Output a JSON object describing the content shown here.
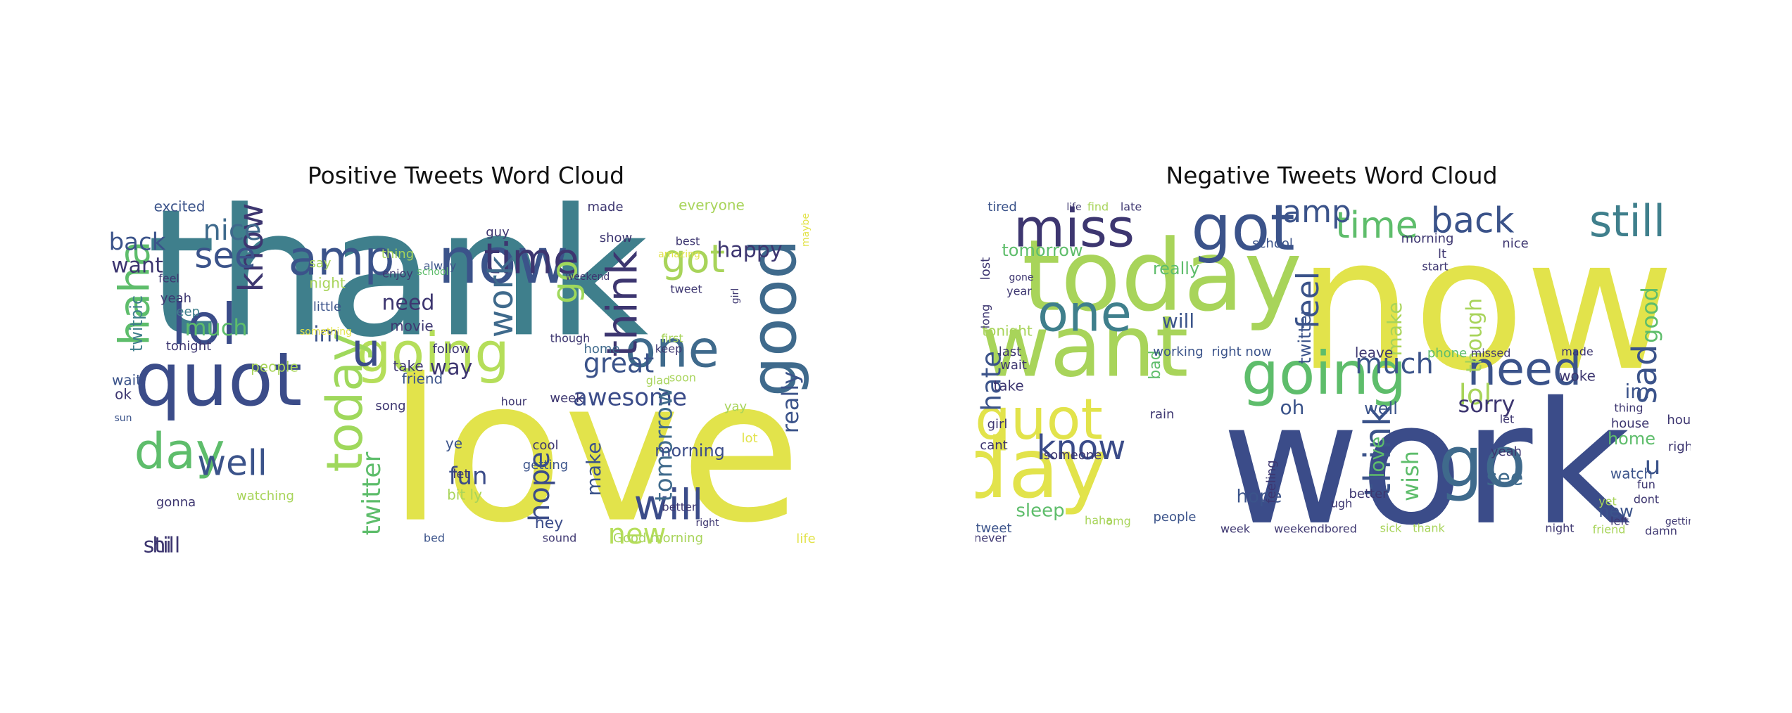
{
  "chart_data": [
    {
      "type": "wordcloud",
      "title": "Positive Tweets Word Cloud",
      "words": [
        {
          "text": "thank",
          "color": "#3f7f8c"
        },
        {
          "text": "love",
          "color": "#e2e34b"
        },
        {
          "text": "now",
          "color": "#3b538a"
        },
        {
          "text": "amp",
          "color": "#3b538a"
        },
        {
          "text": "time",
          "color": "#3d3670"
        },
        {
          "text": "good",
          "color": "#3f6a8c"
        },
        {
          "text": "quot",
          "color": "#3b4c89"
        },
        {
          "text": "going",
          "color": "#b5de5a"
        },
        {
          "text": "lol",
          "color": "#3b4c89"
        },
        {
          "text": "day",
          "color": "#5ebd6b"
        },
        {
          "text": "today",
          "color": "#9fd85c"
        },
        {
          "text": "got",
          "color": "#a8d45a"
        },
        {
          "text": "one",
          "color": "#3f6a8c"
        },
        {
          "text": "will",
          "color": "#3b4c89"
        },
        {
          "text": "u",
          "color": "#3b4c89"
        },
        {
          "text": "haha",
          "color": "#5ebd6b"
        },
        {
          "text": "know",
          "color": "#3d3670"
        },
        {
          "text": "see",
          "color": "#3b538a"
        },
        {
          "text": "think",
          "color": "#3d3670"
        },
        {
          "text": "work",
          "color": "#3f6a8c"
        },
        {
          "text": "go",
          "color": "#9fd85c"
        },
        {
          "text": "well",
          "color": "#3b538a"
        },
        {
          "text": "new",
          "color": "#b5de5a"
        },
        {
          "text": "hope",
          "color": "#3b4c89"
        },
        {
          "text": "twitter",
          "color": "#5ebd6b"
        },
        {
          "text": "happy",
          "color": "#3d3670"
        },
        {
          "text": "nice",
          "color": "#3f6a8c"
        },
        {
          "text": "great",
          "color": "#3b538a"
        },
        {
          "text": "awesome",
          "color": "#3b4c89"
        },
        {
          "text": "back",
          "color": "#3b538a"
        },
        {
          "text": "much",
          "color": "#5ebd6b"
        },
        {
          "text": "tomorrow",
          "color": "#3f6a8c"
        },
        {
          "text": "fun",
          "color": "#3b4c89"
        },
        {
          "text": "really",
          "color": "#3b538a"
        },
        {
          "text": "make",
          "color": "#3b538a"
        },
        {
          "text": "want",
          "color": "#3d3670"
        },
        {
          "text": "twitpic",
          "color": "#3f7f8c"
        },
        {
          "text": "still",
          "color": "#3d3670"
        },
        {
          "text": "need",
          "color": "#3d3670"
        },
        {
          "text": "im",
          "color": "#3b538a"
        },
        {
          "text": "way",
          "color": "#3d3670"
        },
        {
          "text": "night",
          "color": "#a8d45a"
        },
        {
          "text": "morning",
          "color": "#3b4c89"
        },
        {
          "text": "hey",
          "color": "#3b4c89"
        },
        {
          "text": "excited",
          "color": "#3b538a"
        },
        {
          "text": "follow",
          "color": "#3d3670"
        },
        {
          "text": "tonight",
          "color": "#3d3670"
        },
        {
          "text": "people",
          "color": "#a8d45a"
        },
        {
          "text": "watching",
          "color": "#a8d45a"
        },
        {
          "text": "wait",
          "color": "#3b538a"
        },
        {
          "text": "ok",
          "color": "#3d3670"
        },
        {
          "text": "sun",
          "color": "#3b538a"
        },
        {
          "text": "gonna",
          "color": "#3d3670"
        },
        {
          "text": "yeah",
          "color": "#3d3670"
        },
        {
          "text": "feel",
          "color": "#3d3670"
        },
        {
          "text": "sleep",
          "color": "#3f7f8c"
        },
        {
          "text": "little",
          "color": "#3b538a"
        },
        {
          "text": "say",
          "color": "#a8d45a"
        },
        {
          "text": "thing",
          "color": "#a8d45a"
        },
        {
          "text": "enjoy",
          "color": "#3d3670"
        },
        {
          "text": "alway",
          "color": "#3b538a"
        },
        {
          "text": "school",
          "color": "#5ebd6b"
        },
        {
          "text": "movie",
          "color": "#3d3670"
        },
        {
          "text": "take",
          "color": "#3d3670"
        },
        {
          "text": "friend",
          "color": "#3b538a"
        },
        {
          "text": "song",
          "color": "#3d3670"
        },
        {
          "text": "ye",
          "color": "#3b538a"
        },
        {
          "text": "let",
          "color": "#3d3670"
        },
        {
          "text": "bit ly",
          "color": "#a8d45a"
        },
        {
          "text": "bed",
          "color": "#3b538a"
        },
        {
          "text": "getting",
          "color": "#3b538a"
        },
        {
          "text": "cool",
          "color": "#3d3670"
        },
        {
          "text": "hour",
          "color": "#3d3670"
        },
        {
          "text": "week",
          "color": "#3d3670"
        },
        {
          "text": "guy",
          "color": "#3d3670"
        },
        {
          "text": "show",
          "color": "#3d3670"
        },
        {
          "text": "best",
          "color": "#3d3670"
        },
        {
          "text": "weekend",
          "color": "#3d3670"
        },
        {
          "text": "home",
          "color": "#3f6a8c"
        },
        {
          "text": "though",
          "color": "#3d3670"
        },
        {
          "text": "glad",
          "color": "#a8d45a"
        },
        {
          "text": "keep",
          "color": "#3d3670"
        },
        {
          "text": "first",
          "color": "#a8d45a"
        },
        {
          "text": "soon",
          "color": "#a8d45a"
        },
        {
          "text": "better",
          "color": "#3d3670"
        },
        {
          "text": "sound",
          "color": "#3d3670"
        },
        {
          "text": "Good morning",
          "color": "#a8d45a"
        },
        {
          "text": "yay",
          "color": "#a8d45a"
        },
        {
          "text": "lot",
          "color": "#e2e34b"
        },
        {
          "text": "life",
          "color": "#e2e34b"
        },
        {
          "text": "everyone",
          "color": "#a8d45a"
        },
        {
          "text": "made",
          "color": "#3d3670"
        },
        {
          "text": "tweet",
          "color": "#3d3670"
        },
        {
          "text": "girl",
          "color": "#3d3670"
        },
        {
          "text": "amazing",
          "color": "#e2e34b"
        },
        {
          "text": "maybe",
          "color": "#e2e34b"
        },
        {
          "text": "something",
          "color": "#e2e34b"
        },
        {
          "text": "right",
          "color": "#3d3670"
        },
        {
          "text": "hi",
          "color": "#3d3670"
        },
        {
          "text": "dinner",
          "color": "#3d3670"
        },
        {
          "text": "still",
          "color": "#3d3670"
        }
      ]
    },
    {
      "type": "wordcloud",
      "title": "Negative Tweets Word Cloud",
      "words": [
        {
          "text": "now",
          "color": "#e2e34b"
        },
        {
          "text": "work",
          "color": "#3b4c89"
        },
        {
          "text": "today",
          "color": "#a8d45a"
        },
        {
          "text": "miss",
          "color": "#3d3670"
        },
        {
          "text": "got",
          "color": "#3b538a"
        },
        {
          "text": "want",
          "color": "#a8d45a"
        },
        {
          "text": "going",
          "color": "#5ebd6b"
        },
        {
          "text": "go",
          "color": "#3f6a8c"
        },
        {
          "text": "day",
          "color": "#e2e34b"
        },
        {
          "text": "quot",
          "color": "#e2e34b"
        },
        {
          "text": "one",
          "color": "#3f7f8c"
        },
        {
          "text": "need",
          "color": "#3b538a"
        },
        {
          "text": "back",
          "color": "#3b538a"
        },
        {
          "text": "still",
          "color": "#3f7f8c"
        },
        {
          "text": "time",
          "color": "#5ebd6b"
        },
        {
          "text": "amp",
          "color": "#3b538a"
        },
        {
          "text": "know",
          "color": "#3b4c89"
        },
        {
          "text": "think",
          "color": "#3b538a"
        },
        {
          "text": "sad",
          "color": "#3b538a"
        },
        {
          "text": "lol",
          "color": "#a8d45a"
        },
        {
          "text": "sorry",
          "color": "#3d3670"
        },
        {
          "text": "make",
          "color": "#a8d45a"
        },
        {
          "text": "much",
          "color": "#3b538a"
        },
        {
          "text": "feel",
          "color": "#3b538a"
        },
        {
          "text": "wish",
          "color": "#5ebd6b"
        },
        {
          "text": "u",
          "color": "#3b538a"
        },
        {
          "text": "good",
          "color": "#5ebd6b"
        },
        {
          "text": "twitter",
          "color": "#3b538a"
        },
        {
          "text": "love",
          "color": "#5ebd6b"
        },
        {
          "text": "though",
          "color": "#a8d45a"
        },
        {
          "text": "im",
          "color": "#3b538a"
        },
        {
          "text": "home",
          "color": "#5ebd6b"
        },
        {
          "text": "will",
          "color": "#3b538a"
        },
        {
          "text": "hate",
          "color": "#3b538a"
        },
        {
          "text": "see",
          "color": "#3f6a8c"
        },
        {
          "text": "hope",
          "color": "#3b538a"
        },
        {
          "text": "sleep",
          "color": "#5ebd6b"
        },
        {
          "text": "tomorrow",
          "color": "#5ebd6b"
        },
        {
          "text": "really",
          "color": "#5ebd6b"
        },
        {
          "text": "oh",
          "color": "#3b538a"
        },
        {
          "text": "well",
          "color": "#3b538a"
        },
        {
          "text": "bad",
          "color": "#5ebd6b"
        },
        {
          "text": "new",
          "color": "#3b538a"
        },
        {
          "text": "watch",
          "color": "#3b538a"
        },
        {
          "text": "tired",
          "color": "#3b538a"
        },
        {
          "text": "school",
          "color": "#3b538a"
        },
        {
          "text": "morning",
          "color": "#3d3670"
        },
        {
          "text": "nice",
          "color": "#3d3670"
        },
        {
          "text": "lt",
          "color": "#3d3670"
        },
        {
          "text": "start",
          "color": "#3d3670"
        },
        {
          "text": "tonight",
          "color": "#a8d45a"
        },
        {
          "text": "last",
          "color": "#3d3670"
        },
        {
          "text": "wait",
          "color": "#3d3670"
        },
        {
          "text": "take",
          "color": "#3d3670"
        },
        {
          "text": "girl",
          "color": "#3d3670"
        },
        {
          "text": "cant",
          "color": "#3d3670"
        },
        {
          "text": "tweet",
          "color": "#3b538a"
        },
        {
          "text": "never",
          "color": "#3d3670"
        },
        {
          "text": "someone",
          "color": "#3d3670"
        },
        {
          "text": "working",
          "color": "#3b538a"
        },
        {
          "text": "right now",
          "color": "#3b538a"
        },
        {
          "text": "rain",
          "color": "#3d3670"
        },
        {
          "text": "people",
          "color": "#3b538a"
        },
        {
          "text": "haha",
          "color": "#a8d45a"
        },
        {
          "text": "week",
          "color": "#3d3670"
        },
        {
          "text": "weekendbored",
          "color": "#3d3670"
        },
        {
          "text": "sick",
          "color": "#a8d45a"
        },
        {
          "text": "thank",
          "color": "#a8d45a"
        },
        {
          "text": "night",
          "color": "#3d3670"
        },
        {
          "text": "friend",
          "color": "#a8d45a"
        },
        {
          "text": "damn",
          "color": "#3d3670"
        },
        {
          "text": "getting",
          "color": "#3d3670"
        },
        {
          "text": "left",
          "color": "#3d3670"
        },
        {
          "text": "yeah",
          "color": "#3d3670"
        },
        {
          "text": "let",
          "color": "#3d3670"
        },
        {
          "text": "leave",
          "color": "#3d3670"
        },
        {
          "text": "missed",
          "color": "#3d3670"
        },
        {
          "text": "phone",
          "color": "#5ebd6b"
        },
        {
          "text": "made",
          "color": "#3d3670"
        },
        {
          "text": "thing",
          "color": "#3d3670"
        },
        {
          "text": "hour",
          "color": "#3d3670"
        },
        {
          "text": "right",
          "color": "#3d3670"
        },
        {
          "text": "house",
          "color": "#3d3670"
        },
        {
          "text": "woke",
          "color": "#3d3670"
        },
        {
          "text": "lost",
          "color": "#3d3670"
        },
        {
          "text": "long",
          "color": "#3d3670"
        },
        {
          "text": "year",
          "color": "#3d3670"
        },
        {
          "text": "gone",
          "color": "#3d3670"
        },
        {
          "text": "better",
          "color": "#3d3670"
        },
        {
          "text": "feeling",
          "color": "#3d3670"
        },
        {
          "text": "ugh",
          "color": "#3d3670"
        },
        {
          "text": "omg",
          "color": "#a8d45a"
        },
        {
          "text": "fun",
          "color": "#3d3670"
        },
        {
          "text": "yet",
          "color": "#a8d45a"
        },
        {
          "text": "dont",
          "color": "#3d3670"
        },
        {
          "text": "find",
          "color": "#a8d45a"
        },
        {
          "text": "late",
          "color": "#3d3670"
        },
        {
          "text": "life",
          "color": "#3d3670"
        }
      ]
    }
  ]
}
